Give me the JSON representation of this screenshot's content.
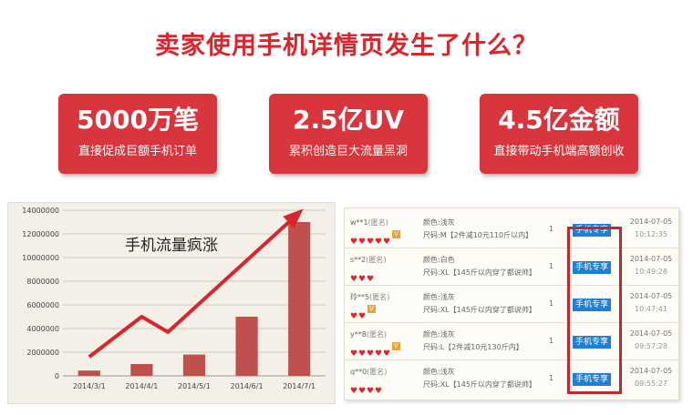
{
  "headline": "卖家使用手机详情页发生了什么？",
  "stats": [
    {
      "value": "5000万笔",
      "caption": "直接促成巨额手机订单"
    },
    {
      "value": "2.5亿UV",
      "caption": "累积创造巨大流量黑洞"
    },
    {
      "value": "4.5亿金额",
      "caption": "直接带动手机端高额创收"
    }
  ],
  "colors": {
    "accent": "#d9252b",
    "card": "#d9353c",
    "bar": "#c0504d",
    "arrow": "#d9252b",
    "badge": "#1f7fd4"
  },
  "chart_data": {
    "type": "bar",
    "annotation": "手机流量疯涨",
    "categories": [
      "2014/3/1",
      "2014/4/1",
      "2014/5/1",
      "2014/6/1",
      "2014/7/1"
    ],
    "values": [
      450000,
      1000000,
      1800000,
      5000000,
      13000000
    ],
    "ylim": [
      0,
      14000000
    ],
    "yticks": [
      "0",
      "2000000",
      "4000000",
      "6000000",
      "8000000",
      "10000000",
      "12000000",
      "14000000"
    ],
    "trend_arrow": [
      [
        0,
        1600000
      ],
      [
        1,
        5000000
      ],
      [
        1.5,
        3700000
      ],
      [
        4,
        13800000
      ]
    ],
    "grid": true
  },
  "orders": [
    {
      "buyer": "w**1",
      "anon": "(匿名)",
      "hearts": 5,
      "vip": true,
      "color_label": "颜色:浅灰",
      "size_label": "尺码:M",
      "size_tag": "【2件减10元110斤以内】",
      "qty": "1",
      "badge": "手机专享",
      "date": "2014-07-05",
      "time": "10:12:35"
    },
    {
      "buyer": "s**2",
      "anon": "(匿名)",
      "hearts": 3,
      "vip": false,
      "color_label": "颜色:白色",
      "size_label": "尺码:XL",
      "size_tag": "【145斤以内穿了都说帅】",
      "qty": "1",
      "badge": "手机专享",
      "date": "2014-07-05",
      "time": "10:49:28"
    },
    {
      "buyer": "玲**5",
      "anon": "(匿名)",
      "hearts": 2,
      "vip": true,
      "color_label": "颜色:浅灰",
      "size_label": "尺码:XL",
      "size_tag": "【145斤以内穿了都说帅】",
      "qty": "1",
      "badge": "手机专享",
      "date": "2014-07-05",
      "time": "10:47:41"
    },
    {
      "buyer": "y**8",
      "anon": "(匿名)",
      "hearts": 5,
      "vip": true,
      "color_label": "颜色:浅灰",
      "size_label": "尺码:L",
      "size_tag": "【2件减10元130斤内】",
      "qty": "1",
      "badge": "手机专享",
      "date": "2014-07-05",
      "time": "09:57:28"
    },
    {
      "buyer": "q**0",
      "anon": "(匿名)",
      "hearts": 4,
      "vip": false,
      "color_label": "颜色:浅灰",
      "size_label": "尺码:XL",
      "size_tag": "【145斤以内穿了都说帅】",
      "qty": "1",
      "badge": "手机专享",
      "date": "2014-07-05",
      "time": "09:55:27"
    }
  ]
}
